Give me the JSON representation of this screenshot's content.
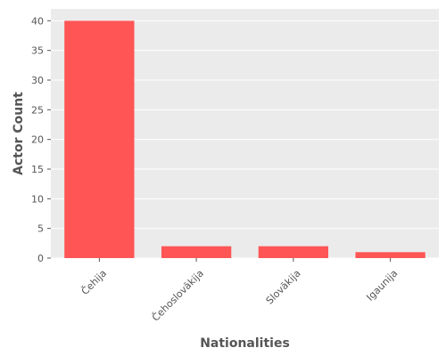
{
  "chart_data": {
    "type": "bar",
    "categories": [
      "Čehija",
      "Čehoslovākija",
      "Slovākija",
      "Igaunija"
    ],
    "values": [
      40,
      2,
      2,
      1
    ],
    "title": "",
    "xlabel": "Nationalities",
    "ylabel": "Actor Count",
    "ylim": [
      0,
      42
    ],
    "yticks": [
      0,
      5,
      10,
      15,
      20,
      25,
      30,
      35,
      40
    ],
    "grid": true,
    "bar_color": "#ff5555",
    "background_color": "#ebebeb",
    "grid_color": "#ffffff"
  }
}
